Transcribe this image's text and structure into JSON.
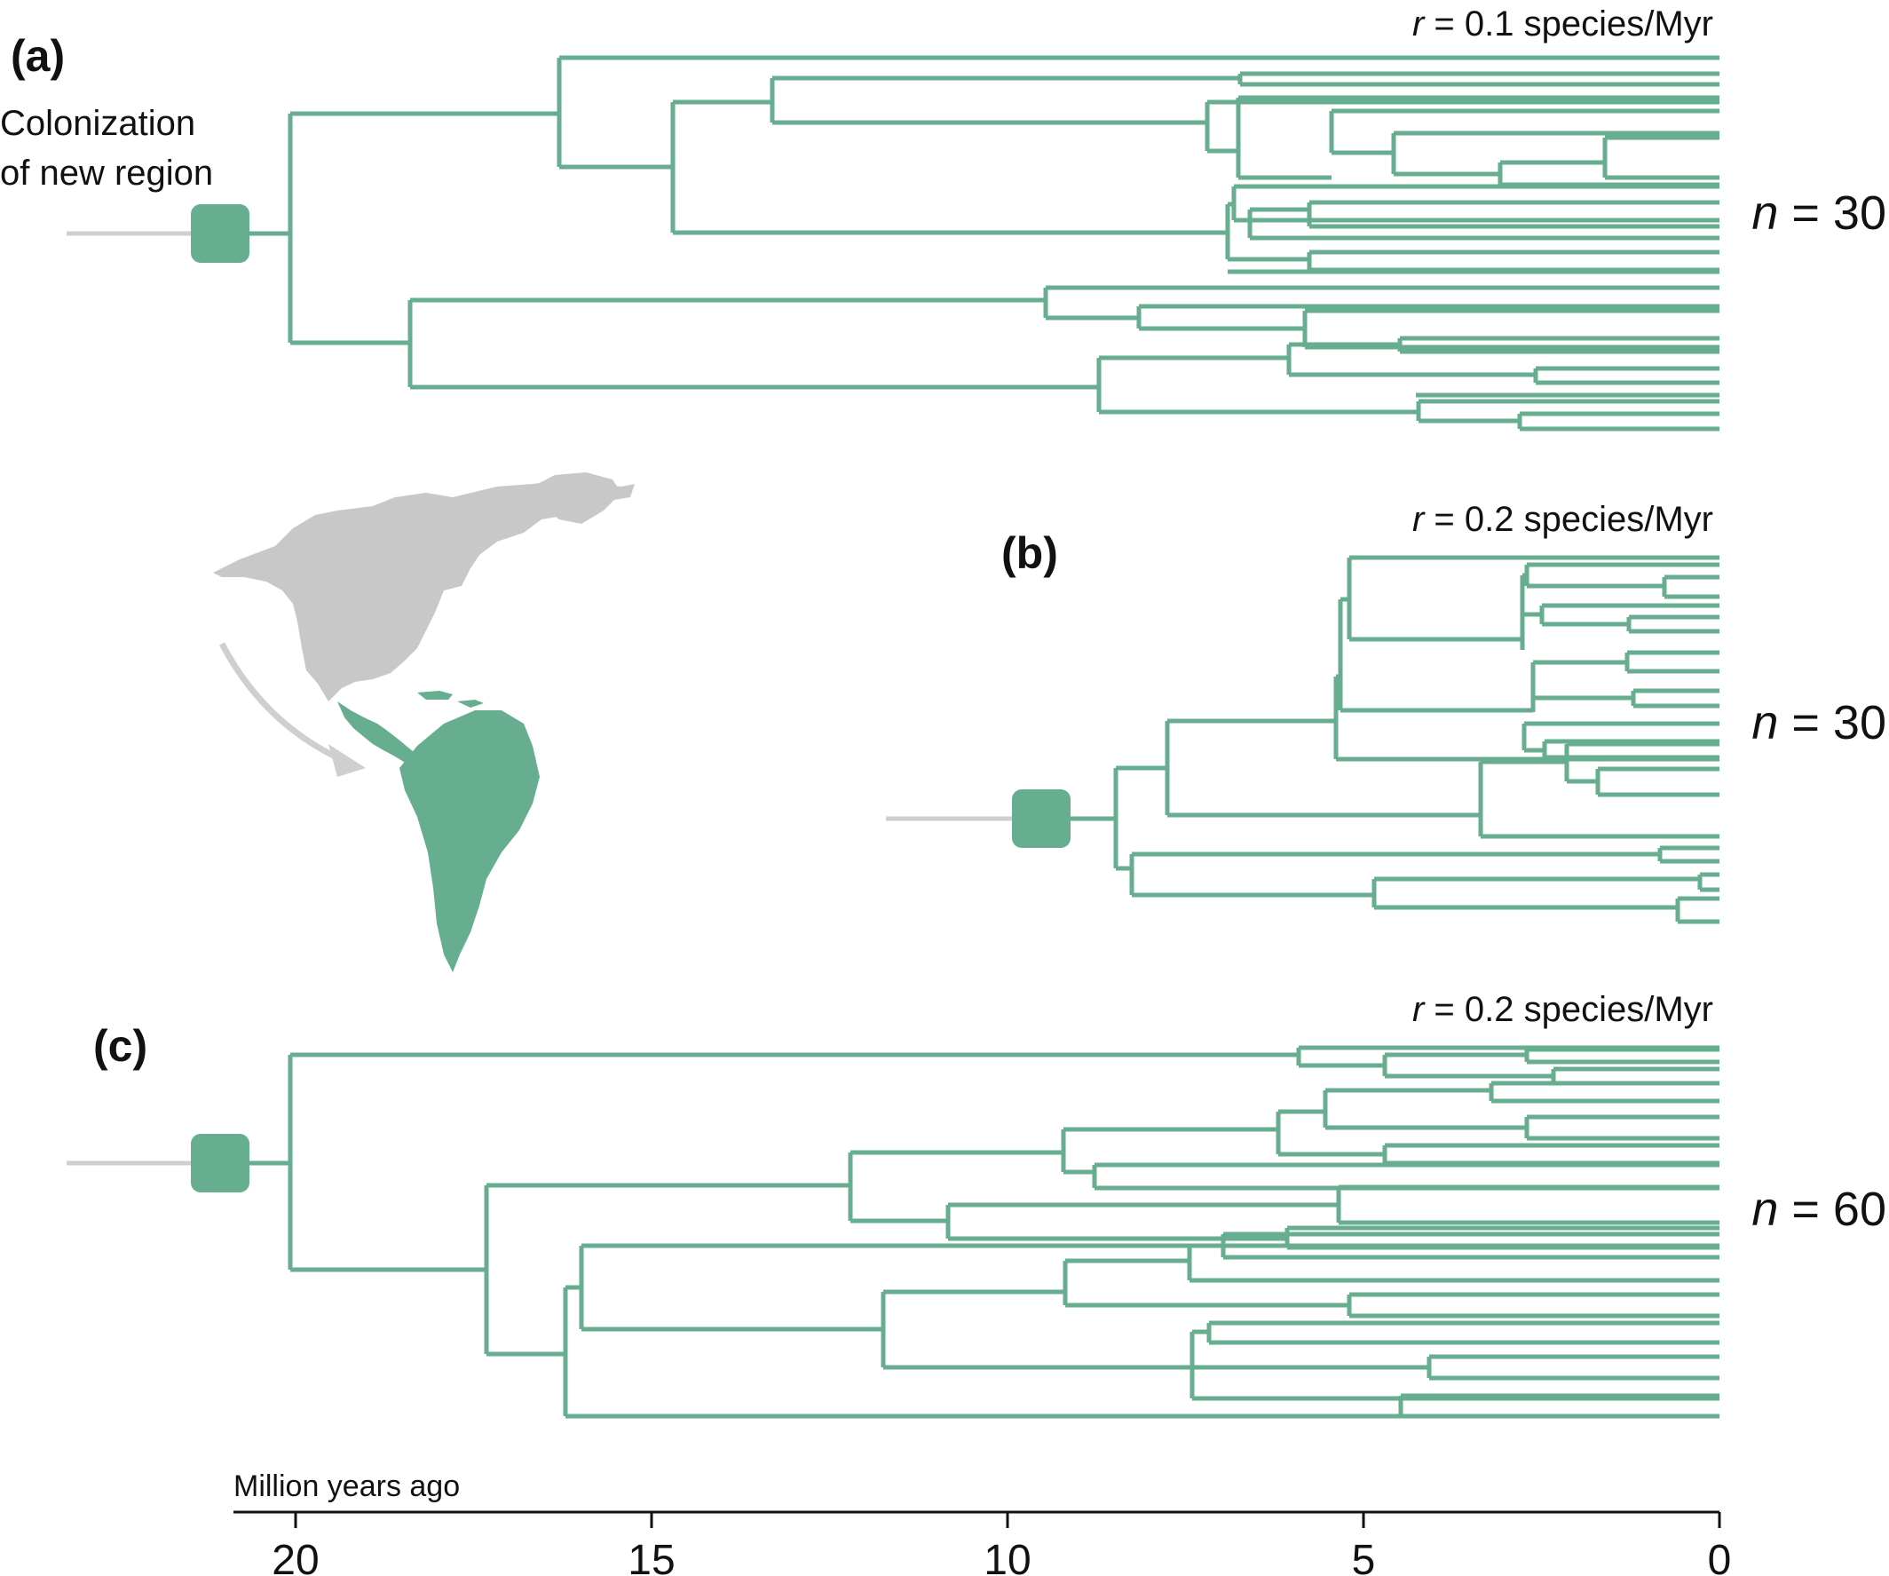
{
  "colors": {
    "tree": "#67ae90",
    "stem": "#cfcfcf",
    "land": "#c8c8c8",
    "axis": "#111111"
  },
  "panels": [
    {
      "id": "a",
      "label": "(a)",
      "rate_var": "r",
      "rate_text": " = 0.1 species/Myr",
      "n_var": "n",
      "n_text": " = 30",
      "note_lines": [
        "Colonization",
        "of new region"
      ]
    },
    {
      "id": "b",
      "label": "(b)",
      "rate_var": "r",
      "rate_text": " = 0.2 species/Myr",
      "n_var": "n",
      "n_text": " = 30"
    },
    {
      "id": "c",
      "label": "(c)",
      "rate_var": "r",
      "rate_text": " = 0.2 species/Myr",
      "n_var": "n",
      "n_text": " = 60"
    }
  ],
  "axis": {
    "title": "Million years ago",
    "ticks": [
      {
        "value": 20,
        "label": "20"
      },
      {
        "value": 15,
        "label": "15"
      },
      {
        "value": 10,
        "label": "10"
      },
      {
        "value": 5,
        "label": "5"
      },
      {
        "value": 0,
        "label": "0"
      }
    ]
  },
  "map": {
    "icon": "americas-map-icon",
    "arrow": "migration-arrow-icon"
  }
}
